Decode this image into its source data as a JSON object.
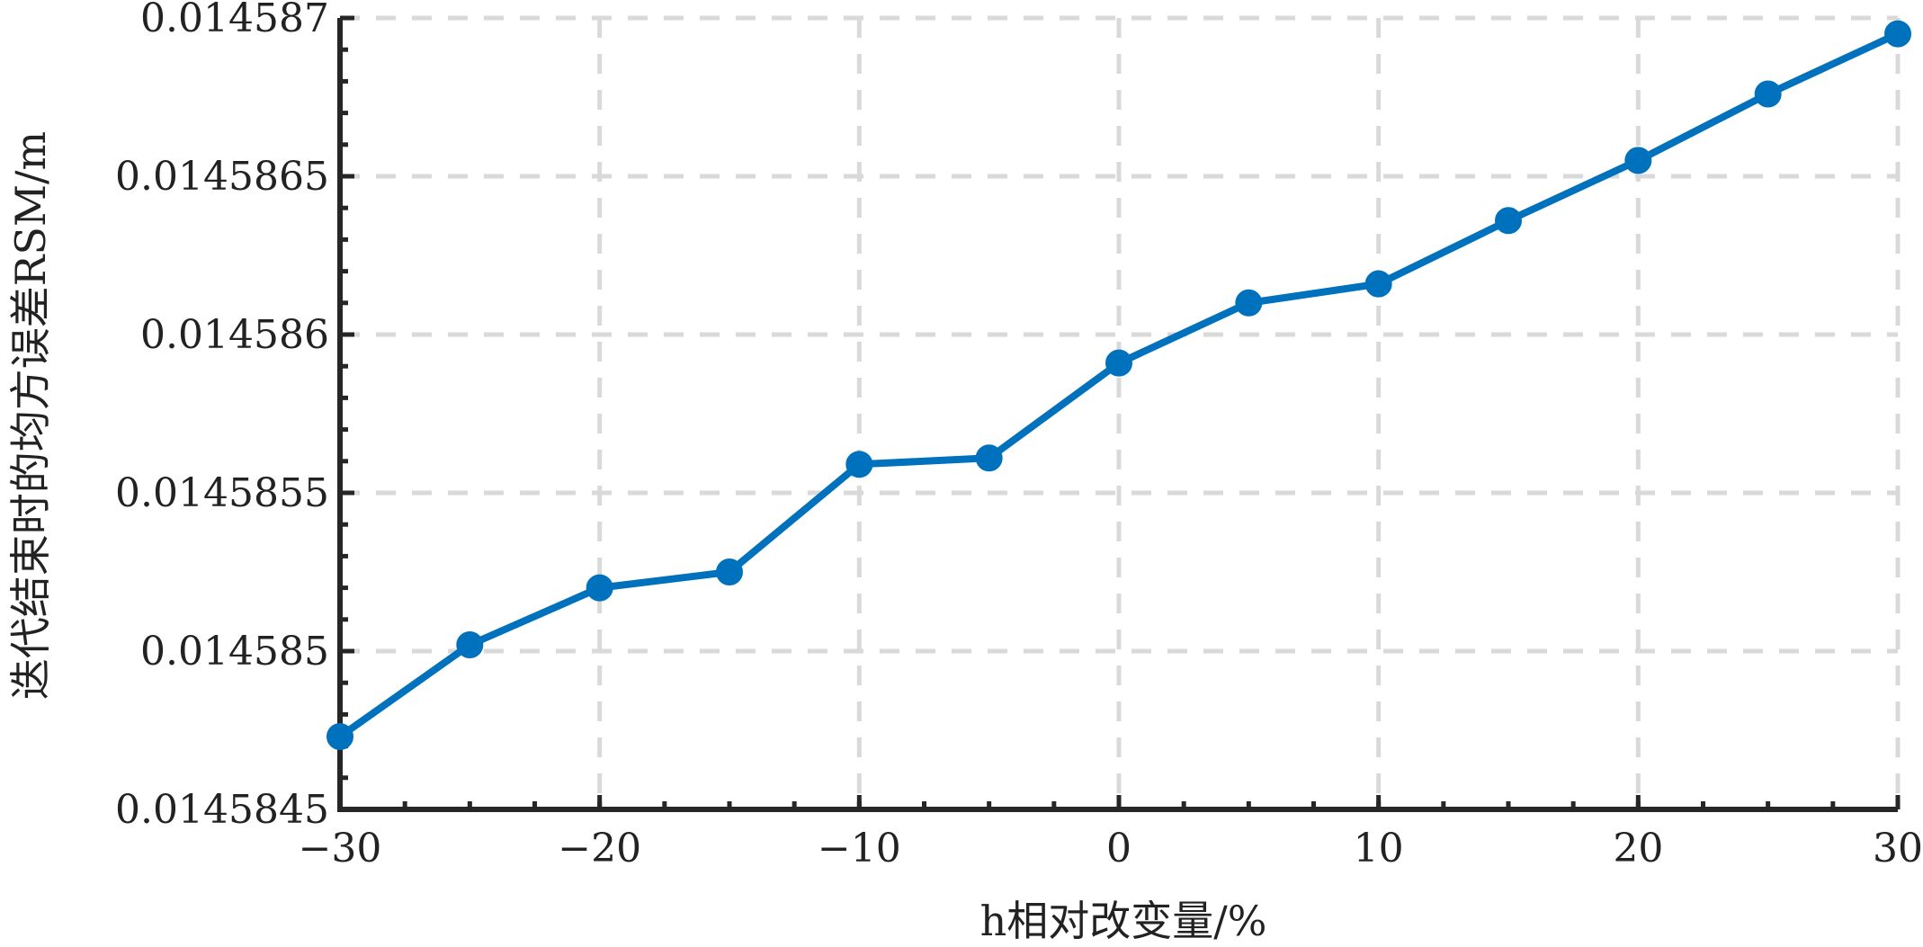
{
  "chart_data": {
    "type": "line",
    "xlabel": "h相对改变量/%",
    "ylabel": "迭代结束时的均方误差RSM/m",
    "xlim": [
      -30,
      30
    ],
    "ylim": [
      0.0145845,
      0.014587
    ],
    "xticks": [
      -30,
      -20,
      -10,
      0,
      10,
      20,
      30
    ],
    "xtick_labels": [
      "−30",
      "−20",
      "−10",
      "0",
      "10",
      "20",
      "30"
    ],
    "yticks": [
      0.0145845,
      0.014585,
      0.0145855,
      0.014586,
      0.0145865,
      0.014587
    ],
    "ytick_labels": [
      "0.0145845",
      "0.014585",
      "0.0145855",
      "0.014586",
      "0.0145865",
      "0.014587"
    ],
    "grid": true,
    "series": [
      {
        "x": [
          -30,
          -25,
          -20,
          -15,
          -10,
          -5,
          0,
          5,
          10,
          15,
          20,
          25,
          30
        ],
        "y": [
          0.01458473,
          0.01458502,
          0.0145852,
          0.01458525,
          0.01458559,
          0.01458561,
          0.01458591,
          0.0145861,
          0.01458616,
          0.01458636,
          0.01458655,
          0.01458676,
          0.01458695
        ],
        "color": "#0072BD"
      }
    ]
  }
}
